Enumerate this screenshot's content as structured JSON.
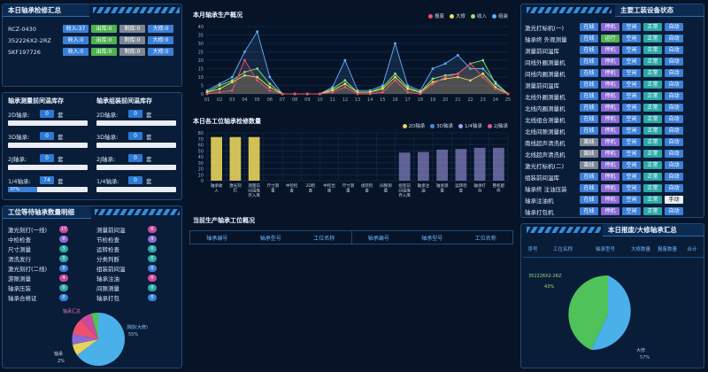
{
  "top_left": {
    "title": "本日轴承检修汇总",
    "rows": [
      {
        "code": "RCZ-0430",
        "b1": "收入:37",
        "b2": "出库:0",
        "b3": "制库:0",
        "b4": "大修:0"
      },
      {
        "code": "352226X2-2RZ",
        "b1": "收入:0",
        "b2": "出库:0",
        "b3": "制库:0",
        "b4": "大修:0"
      },
      {
        "code": "SKF197726",
        "b1": "收入:0",
        "b2": "出库:0",
        "b3": "制库:0",
        "b4": "大修:0"
      }
    ]
  },
  "stock_panel": {
    "title_left": "轴承测量前间温库存",
    "title_right": "轴承组装前间温库存",
    "left_items": [
      {
        "label": "2D轴承:",
        "value": "0",
        "unit": "套",
        "pct": 0
      },
      {
        "label": "3D轴承:",
        "value": "0",
        "unit": "套",
        "pct": 0
      },
      {
        "label": "2J轴承:",
        "value": "0",
        "unit": "套",
        "pct": 0
      },
      {
        "label": "1/4轴承:",
        "value": "74",
        "unit": "套",
        "pct": 37,
        "pct_label": "37%"
      }
    ],
    "right_items": [
      {
        "label": "2D轴承:",
        "value": "0",
        "unit": "套",
        "pct": 0
      },
      {
        "label": "3D轴承:",
        "value": "0",
        "unit": "套",
        "pct": 0
      },
      {
        "label": "2J轴承:",
        "value": "0",
        "unit": "套",
        "pct": 0
      },
      {
        "label": "1/4轴承:",
        "value": "0",
        "unit": "套",
        "pct": 0
      }
    ]
  },
  "queue_panel": {
    "title": "工位等待轴承数量明细",
    "left": [
      {
        "label": "激光刻打(一线)",
        "count": "17",
        "color": "#c94aa0"
      },
      {
        "label": "中检检查",
        "count": "0",
        "color": "#8a6ad6"
      },
      {
        "label": "尺寸测量",
        "count": "3",
        "color": "#2aa8a8"
      },
      {
        "label": "清洗发行",
        "count": "0",
        "color": "#2aa8a8"
      },
      {
        "label": "激光刻打(二线)",
        "count": "0",
        "color": "#3c7fd8"
      },
      {
        "label": "游隙测量",
        "count": "4",
        "color": "#c94aa0"
      },
      {
        "label": "轴承压装",
        "count": "0",
        "color": "#2aa8a8"
      },
      {
        "label": "轴承合格证",
        "count": "0",
        "color": "#3c7fd8"
      }
    ],
    "right": [
      {
        "label": "测量前间温",
        "count": "0",
        "color": "#c94aa0"
      },
      {
        "label": "节检检查",
        "count": "0",
        "color": "#8a6ad6"
      },
      {
        "label": "运转检查",
        "count": "0",
        "color": "#2aa8a8"
      },
      {
        "label": "分类判断",
        "count": "0",
        "color": "#2aa8a8"
      },
      {
        "label": "组装前间温",
        "count": "0",
        "color": "#3c7fd8"
      },
      {
        "label": "轴承注油",
        "count": "0",
        "color": "#c94aa0"
      },
      {
        "label": "间隙测量",
        "count": "0",
        "color": "#2aa8a8"
      },
      {
        "label": "轴承打包",
        "count": "0",
        "color": "#3c7fd8"
      }
    ],
    "pie_labels": {
      "top": "轴承汇总",
      "right": "测前(大修)",
      "right_pct": "55%",
      "left": "轴承",
      "left_pct": "2%"
    }
  },
  "monthly": {
    "title": "本月轴承生产概况",
    "legend": [
      {
        "name": "报废",
        "color": "#f0506e"
      },
      {
        "name": "大修",
        "color": "#e8e25a"
      },
      {
        "name": "收入",
        "color": "#8fe07a"
      },
      {
        "name": "组装",
        "color": "#5fb0ff"
      }
    ]
  },
  "chart_data": [
    {
      "type": "line",
      "title": "本月轴承生产概况",
      "x": [
        "01",
        "02",
        "03",
        "04",
        "05",
        "06",
        "07",
        "08",
        "09",
        "10",
        "11",
        "12",
        "13",
        "14",
        "15",
        "16",
        "17",
        "18",
        "19",
        "20",
        "21",
        "22",
        "23",
        "24",
        "25"
      ],
      "ylim": [
        0,
        40
      ],
      "yticks": [
        0,
        5,
        10,
        15,
        20,
        25,
        30,
        35,
        40
      ],
      "series": [
        {
          "name": "组装",
          "color": "#5fb0ff",
          "values": [
            2,
            6,
            10,
            25,
            37,
            10,
            0,
            0,
            0,
            0,
            4,
            20,
            2,
            2,
            5,
            30,
            5,
            2,
            15,
            18,
            23,
            15,
            15,
            7,
            0
          ]
        },
        {
          "name": "收入",
          "color": "#8fe07a",
          "values": [
            1,
            5,
            8,
            13,
            15,
            6,
            0,
            0,
            0,
            0,
            3,
            8,
            1,
            1,
            4,
            12,
            4,
            1,
            9,
            11,
            12,
            18,
            20,
            6,
            0
          ]
        },
        {
          "name": "大修",
          "color": "#e8e25a",
          "values": [
            1,
            3,
            7,
            11,
            10,
            4,
            0,
            0,
            0,
            0,
            2,
            6,
            1,
            1,
            3,
            10,
            3,
            1,
            7,
            9,
            10,
            8,
            12,
            4,
            0
          ]
        },
        {
          "name": "报废",
          "color": "#f0506e",
          "values": [
            0,
            1,
            2,
            20,
            8,
            2,
            0,
            0,
            0,
            0,
            1,
            4,
            0,
            0,
            1,
            8,
            1,
            0,
            6,
            10,
            12,
            18,
            10,
            3,
            0
          ]
        }
      ]
    },
    {
      "type": "bar",
      "title": "本日各工位轴承检修数量",
      "categories": [
        "轴承收入",
        "激光刻打",
        "测量前间温库存入库",
        "尺寸测量",
        "中检检查",
        "2D检查",
        "中检出库",
        "尺寸测量",
        "组装检查",
        "间隙测量",
        "组装前间温库存入库",
        "轴承注油",
        "轴承测量",
        "运转检查",
        "轴承打包",
        "整机配件"
      ],
      "ylim": [
        0,
        80
      ],
      "yticks": [
        0,
        10,
        20,
        30,
        40,
        50,
        60,
        70,
        80
      ],
      "series": [
        {
          "name": "2D轴承",
          "color": "#e8d35a",
          "values": [
            73,
            73,
            73,
            0,
            0,
            0,
            0,
            0,
            0,
            0,
            0,
            0,
            0,
            0,
            0,
            0
          ]
        },
        {
          "name": "3D轴承",
          "color": "#4a8ad8",
          "values": [
            0,
            0,
            0,
            0,
            0,
            0,
            0,
            0,
            0,
            0,
            0,
            0,
            0,
            0,
            0,
            0
          ]
        },
        {
          "name": "1/4轴承",
          "color": "#a9a2f0",
          "values": [
            0,
            0,
            0,
            0,
            0,
            0,
            0,
            0,
            0,
            0,
            47,
            48,
            52,
            53,
            55,
            55
          ]
        },
        {
          "name": "2J轴承",
          "color": "#e05a8a",
          "values": [
            0,
            0,
            0,
            0,
            0,
            0,
            0,
            0,
            0,
            0,
            0,
            0,
            0,
            0,
            0,
            0
          ]
        }
      ]
    },
    {
      "type": "pie",
      "title": "本日报废/大修轴承汇总",
      "slices": [
        {
          "name": "352226X2-2RZ",
          "value": 43,
          "label": "43%",
          "color": "#4fc25a"
        },
        {
          "name": "大修",
          "value": 57,
          "label": "57%",
          "color": "#4ab0ea"
        }
      ]
    }
  ],
  "daily": {
    "title": "本日各工位轴承检修数量",
    "legend": [
      {
        "name": "2D轴承",
        "color": "#e8d35a"
      },
      {
        "name": "3D轴承",
        "color": "#4a8ad8"
      },
      {
        "name": "1/4轴承",
        "color": "#a9a2f0"
      },
      {
        "name": "2J轴承",
        "color": "#e05a8a"
      }
    ]
  },
  "current": {
    "title": "当前生产轴承工位概况",
    "headers": [
      "轴承编号",
      "轴承型号",
      "工位名称",
      "轴承编号",
      "轴承型号",
      "工位名称"
    ]
  },
  "equipment": {
    "title": "主要工装设备状态",
    "rows": [
      {
        "name": "激光打标机(一)",
        "s": [
          "在线",
          "停机",
          "空闲",
          "正常",
          "自动"
        ]
      },
      {
        "name": "轴承终 外观测量",
        "s": [
          "在线",
          "运行",
          "空闲",
          "正常",
          "自动"
        ]
      },
      {
        "name": "测量前间温库",
        "s": [
          "在线",
          "停机",
          "空闲",
          "正常",
          "自动"
        ]
      },
      {
        "name": "间线外圈测量机",
        "s": [
          "在线",
          "停机",
          "空闲",
          "正常",
          "自动"
        ]
      },
      {
        "name": "间线内圈测量机",
        "s": [
          "在线",
          "停机",
          "空闲",
          "正常",
          "自动"
        ]
      },
      {
        "name": "测量前间温库",
        "s": [
          "在线",
          "停机",
          "空闲",
          "正常",
          "自动"
        ]
      },
      {
        "name": "北线外圈测量机",
        "s": [
          "在线",
          "停机",
          "空闲",
          "正常",
          "自动"
        ]
      },
      {
        "name": "北线内圈测量机",
        "s": [
          "在线",
          "停机",
          "空闲",
          "正常",
          "自动"
        ]
      },
      {
        "name": "北线组合测量机",
        "s": [
          "在线",
          "停机",
          "空闲",
          "正常",
          "自动"
        ]
      },
      {
        "name": "北线间隙测量机",
        "s": [
          "在线",
          "停机",
          "空闲",
          "正常",
          "自动"
        ]
      },
      {
        "name": "南线超声清洗机",
        "s": [
          "离线",
          "停机",
          "空闲",
          "正常",
          "自动"
        ]
      },
      {
        "name": "北线超声清洗机",
        "s": [
          "离线",
          "停机",
          "空闲",
          "正常",
          "自动"
        ]
      },
      {
        "name": "激光打标机(二)",
        "s": [
          "离线",
          "停机",
          "空闲",
          "正常",
          "自动"
        ]
      },
      {
        "name": "组装前间温库",
        "s": [
          "在线",
          "停机",
          "空闲",
          "正常",
          "自动"
        ]
      },
      {
        "name": "轴承终 注油压装",
        "s": [
          "在线",
          "停机",
          "空闲",
          "正常",
          "自动"
        ]
      },
      {
        "name": "轴承注油机",
        "s": [
          "在线",
          "停机",
          "空闲",
          "正常",
          "手动"
        ]
      },
      {
        "name": "轴承打包机",
        "s": [
          "在线",
          "停机",
          "空闲",
          "正常",
          "自动"
        ]
      }
    ]
  },
  "scrap": {
    "title": "本日报废/大修轴承汇总",
    "headers": [
      "序号",
      "工位名称",
      "轴承型号",
      "大修数量",
      "报废数量",
      "合计"
    ],
    "pie_label_top": "352226X2-2RZ",
    "pie_pct_left": "43%",
    "pie_label_bottom": "大修",
    "pie_pct_right": "57%"
  }
}
